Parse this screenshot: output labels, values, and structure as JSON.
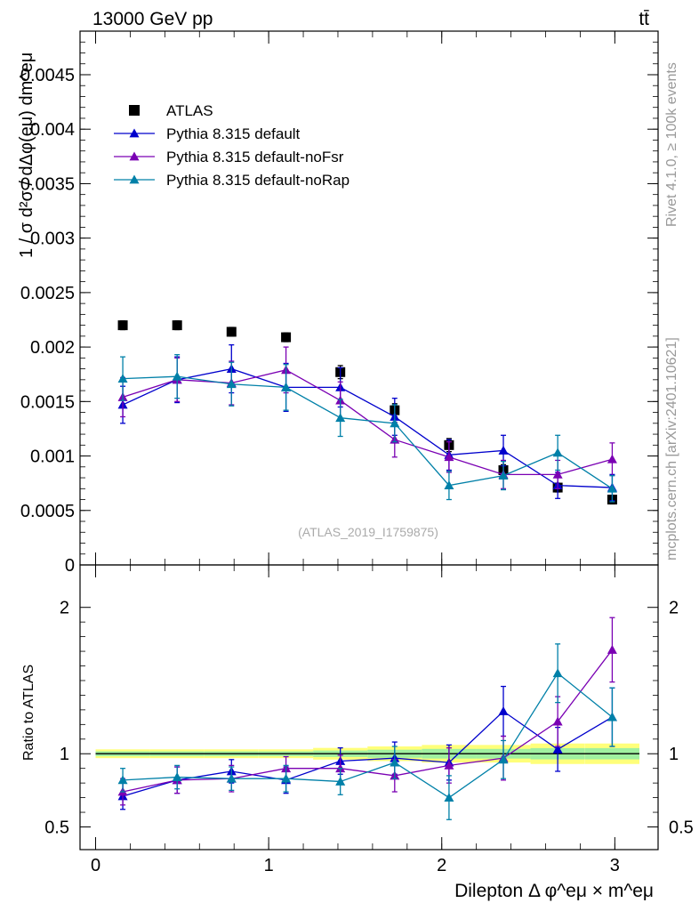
{
  "header": {
    "energy_label": "13000 GeV pp",
    "process_label": "tt̄"
  },
  "side_labels": {
    "rivet": "Rivet 4.1.0, ≥ 100k events",
    "mcplots": "mcplots.cern.ch [arXiv:2401.10621]"
  },
  "analysis_label": "(ATLAS_2019_I1759875)",
  "colors": {
    "atlas": "#000000",
    "default": "#0000cc",
    "noFsr": "#7a00b3",
    "noRap": "#0080a8",
    "band_yellow": "#ffff7a",
    "band_green": "#a0f0a0"
  },
  "chart_data": [
    {
      "type": "line",
      "panel": "main",
      "ylabel": "1 / σ  d²σ / dΔφ(eμ) dm^eμ",
      "ylim": [
        0,
        0.0049
      ],
      "xlim": [
        -0.09,
        3.25
      ],
      "yticks": [
        0,
        0.0005,
        0.001,
        0.0015,
        0.002,
        0.0025,
        0.003,
        0.0035,
        0.004,
        0.0045
      ],
      "ytick_labels": [
        "0",
        "0.0005",
        "0.001",
        "0.0015",
        "0.002",
        "0.0025",
        "0.003",
        "0.0035",
        "0.004",
        "0.0045"
      ],
      "x": [
        0.157,
        0.471,
        0.785,
        1.1,
        1.414,
        1.728,
        2.042,
        2.356,
        2.67,
        2.985
      ],
      "series": [
        {
          "name": "ATLAS",
          "key": "atlas",
          "marker": "square",
          "values": [
            0.0022,
            0.0022,
            0.00214,
            0.00209,
            0.00177,
            0.00142,
            0.0011,
            0.00087,
            0.00071,
            0.0006
          ],
          "err": [
            4e-05,
            4e-05,
            4e-05,
            4e-05,
            6e-05,
            6e-05,
            6e-05,
            5e-05,
            4e-05,
            4e-05
          ]
        },
        {
          "name": "Pythia 8.315 default",
          "key": "default",
          "marker": "triangle",
          "values": [
            0.00147,
            0.0017,
            0.0018,
            0.00163,
            0.00163,
            0.00136,
            0.00101,
            0.00105,
            0.00073,
            0.00071
          ],
          "err": [
            0.00017,
            0.00021,
            0.00022,
            0.00022,
            0.00018,
            0.00017,
            0.00014,
            0.00014,
            0.00012,
            0.00012
          ]
        },
        {
          "name": "Pythia 8.315 default-noFsr",
          "key": "noFsr",
          "marker": "triangle",
          "values": [
            0.00154,
            0.0017,
            0.00167,
            0.00179,
            0.00151,
            0.00115,
            0.00099,
            0.00083,
            0.00083,
            0.00097
          ],
          "err": [
            0.00018,
            0.0002,
            0.0002,
            0.00021,
            0.00017,
            0.00016,
            0.00014,
            0.00013,
            0.00013,
            0.00015
          ]
        },
        {
          "name": "Pythia 8.315 default-noRap",
          "key": "noRap",
          "marker": "triangle",
          "values": [
            0.00171,
            0.00173,
            0.00166,
            0.00163,
            0.00135,
            0.0013,
            0.00073,
            0.00082,
            0.00103,
            0.0007
          ],
          "err": [
            0.0002,
            0.0002,
            0.0002,
            0.00021,
            0.00017,
            0.00017,
            0.00013,
            0.00013,
            0.00016,
            0.00012
          ]
        }
      ]
    },
    {
      "type": "line",
      "panel": "ratio",
      "ylabel": "Ratio to ATLAS",
      "xlabel": "Dilepton Δ φ^eμ × m^eμ",
      "ylim": [
        0.345,
        2.29
      ],
      "xlim": [
        -0.09,
        3.25
      ],
      "xticks": [
        0,
        1,
        2,
        3
      ],
      "xtick_labels": [
        "0",
        "1",
        "2",
        "3"
      ],
      "yticks": [
        0.5,
        1,
        2
      ],
      "ytick_labels": [
        "0.5",
        "1",
        "2"
      ],
      "x": [
        0.157,
        0.471,
        0.785,
        1.1,
        1.414,
        1.728,
        2.042,
        2.356,
        2.67,
        2.985
      ],
      "band_rel_err": [
        0.03,
        0.03,
        0.03,
        0.03,
        0.04,
        0.05,
        0.06,
        0.06,
        0.07,
        0.07
      ],
      "series": [
        {
          "name": "Pythia 8.315 default",
          "key": "default",
          "values": [
            0.71,
            0.82,
            0.88,
            0.82,
            0.95,
            0.97,
            0.94,
            1.29,
            1.03,
            1.25
          ],
          "err": [
            0.09,
            0.09,
            0.08,
            0.09,
            0.09,
            0.11,
            0.12,
            0.17,
            0.15,
            0.2
          ]
        },
        {
          "name": "Pythia 8.315 default-noFsr",
          "key": "noFsr",
          "values": [
            0.74,
            0.82,
            0.83,
            0.9,
            0.9,
            0.85,
            0.92,
            0.97,
            1.22,
            1.71
          ],
          "err": [
            0.09,
            0.09,
            0.09,
            0.08,
            0.09,
            0.11,
            0.12,
            0.15,
            0.17,
            0.22
          ]
        },
        {
          "name": "Pythia 8.315 default-noRap",
          "key": "noRap",
          "values": [
            0.82,
            0.84,
            0.83,
            0.83,
            0.81,
            0.94,
            0.7,
            0.96,
            1.55,
            1.25
          ],
          "err": [
            0.08,
            0.08,
            0.08,
            0.09,
            0.09,
            0.11,
            0.15,
            0.13,
            0.2,
            0.2
          ]
        }
      ]
    }
  ]
}
